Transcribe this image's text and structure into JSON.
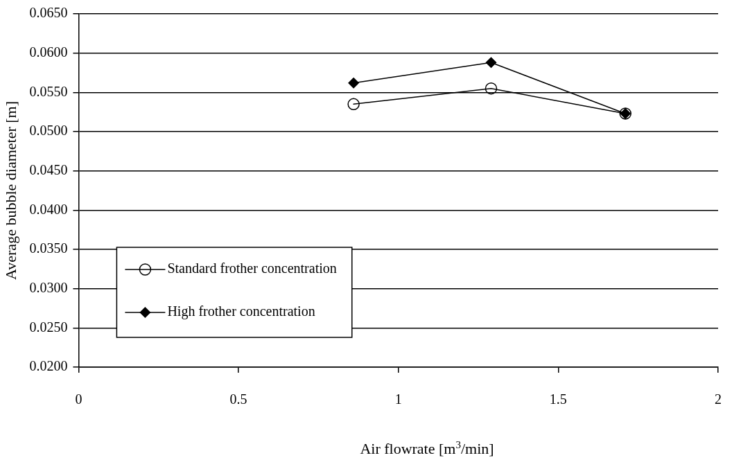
{
  "chart_data": {
    "type": "line",
    "xlabel": "Air flowrate [m$^{3}$/min]",
    "ylabel": "Average bubble diameter [m]",
    "xlim": [
      0,
      2
    ],
    "xticks": [
      0,
      0.5,
      1,
      1.5,
      2
    ],
    "ylim": [
      0.02,
      0.065
    ],
    "yticks": [
      {
        "value": 0.02,
        "label": "0.0200"
      },
      {
        "value": 0.025,
        "label": "0.0250"
      },
      {
        "value": 0.03,
        "label": "0.0300"
      },
      {
        "value": 0.035,
        "label": "0.0350"
      },
      {
        "value": 0.04,
        "label": "0.0400"
      },
      {
        "value": 0.045,
        "label": "0.0450"
      },
      {
        "value": 0.05,
        "label": "0.0500"
      },
      {
        "value": 0.055,
        "label": "0.0550"
      },
      {
        "value": 0.06,
        "label": "0.0600"
      },
      {
        "value": 0.065,
        "label": "0.0650"
      }
    ],
    "grid": "y",
    "legend": "bottom left",
    "line_style": "solid",
    "series": [
      {
        "name": "Standard frother concentration",
        "color": "#000000",
        "marker": "circle",
        "x": [
          0.86,
          1.29,
          1.71
        ],
        "values": [
          0.0535,
          0.0555,
          0.0523
        ]
      },
      {
        "name": "High frother concentration",
        "color": "#000000",
        "marker": "diamond",
        "x": [
          0.86,
          1.29,
          1.71
        ],
        "values": [
          0.0562,
          0.0588,
          0.0523
        ]
      }
    ]
  }
}
